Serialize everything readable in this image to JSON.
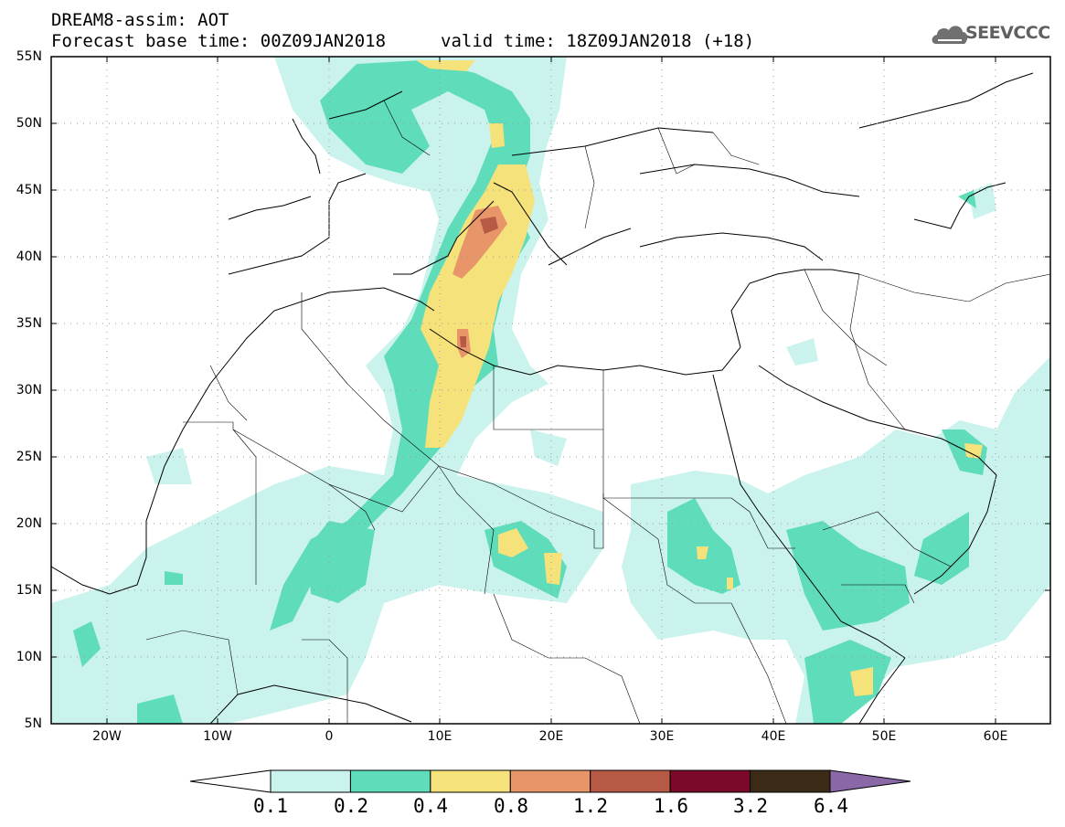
{
  "title": {
    "line1": "DREAM8-assim: AOT",
    "line2": "Forecast base time: 00Z09JAN2018",
    "valid": "valid time: 18Z09JAN2018 (+18)"
  },
  "logo": {
    "text": "SEEVCCC",
    "icon": "cloud-icon"
  },
  "map": {
    "projection": "lat-lon",
    "lon_range": [
      -25,
      65
    ],
    "lat_range": [
      5,
      55
    ],
    "grid": true,
    "lat_labels": [
      "55N",
      "50N",
      "45N",
      "40N",
      "35N",
      "30N",
      "25N",
      "20N",
      "15N",
      "10N",
      "5N"
    ],
    "lon_labels": [
      "20W",
      "10W",
      "0",
      "10E",
      "20E",
      "30E",
      "40E",
      "50E",
      "60E"
    ]
  },
  "colorbar": {
    "labels": [
      "0.1",
      "0.2",
      "0.4",
      "0.8",
      "1.2",
      "1.6",
      "3.2",
      "6.4"
    ],
    "colors": [
      "#c9f3ec",
      "#5fdcb9",
      "#f6e27a",
      "#e8956a",
      "#b75a45",
      "#7b0a2a",
      "#3b2a16",
      "#8a68a8"
    ]
  }
}
